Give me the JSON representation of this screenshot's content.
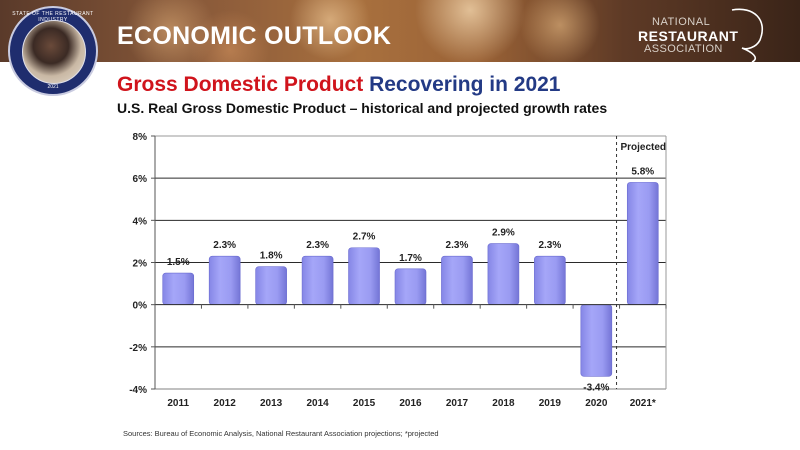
{
  "banner": {
    "title": "ECONOMIC OUTLOOK",
    "badge": {
      "ring_text": "STATE OF THE RESTAURANT INDUSTRY",
      "year": "2021"
    },
    "logo": {
      "line1": "NATIONAL",
      "line2": "RESTAURANT",
      "line3": "ASSOCIATION"
    }
  },
  "heading": {
    "part_red": "Gross Domestic Product ",
    "part_blue": "Recovering in 2021"
  },
  "subheading": "U.S. Real Gross Domestic Product – historical and projected growth rates",
  "source": "Sources: Bureau of Economic Analysis, National Restaurant Association projections; *projected",
  "colors": {
    "bar": "#9b9cf2",
    "bar_edge": "#6a6bd0",
    "heading_red": "#d0141c",
    "heading_blue": "#233a85"
  },
  "chart_data": {
    "type": "bar",
    "title": "U.S. Real Gross Domestic Product – historical and projected growth rates",
    "xlabel": "",
    "ylabel": "",
    "categories": [
      "2011",
      "2012",
      "2013",
      "2014",
      "2015",
      "2016",
      "2017",
      "2018",
      "2019",
      "2020",
      "2021*"
    ],
    "values": [
      1.5,
      2.3,
      1.8,
      2.3,
      2.7,
      1.7,
      2.3,
      2.9,
      2.3,
      -3.4,
      5.8
    ],
    "data_labels": [
      "1.5%",
      "2.3%",
      "1.8%",
      "2.3%",
      "2.7%",
      "1.7%",
      "2.3%",
      "2.9%",
      "2.3%",
      "-3.4%",
      "5.8%"
    ],
    "ylim": [
      -4,
      8
    ],
    "yticks": [
      -4,
      -2,
      0,
      2,
      4,
      6,
      8
    ],
    "ytick_labels": [
      "-4%",
      "-2%",
      "0%",
      "2%",
      "4%",
      "6%",
      "8%"
    ],
    "grid": true,
    "projected_from_index": 10,
    "annotations": [
      "Projected"
    ],
    "legend": "none"
  }
}
